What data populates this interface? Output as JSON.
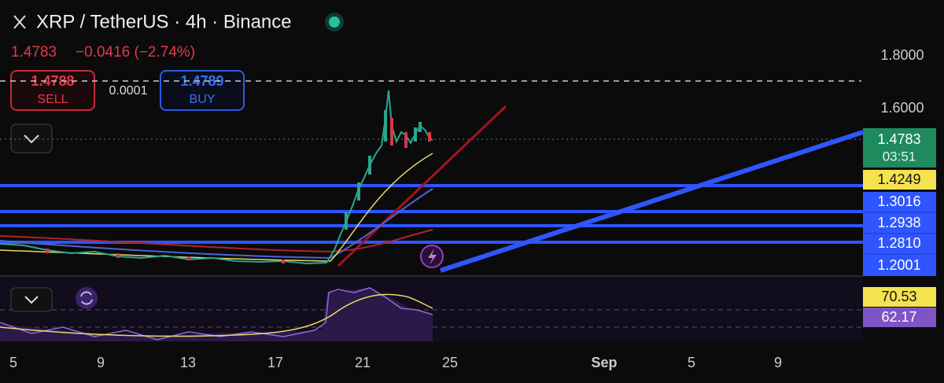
{
  "header": {
    "title": "XRP / TetherUS · 4h · Binance",
    "price": "1.4783",
    "change": "−0.0416 (−2.74%)"
  },
  "order": {
    "sell_price": "1.4788",
    "sell_label": "SELL",
    "spread": "0.0001",
    "buy_price": "1.4789",
    "buy_label": "BUY"
  },
  "price_axis": [
    "1.8000",
    "1.6000"
  ],
  "price_tags": {
    "last": "1.4783",
    "countdown": "03:51",
    "ma": "1.4249",
    "levels": [
      "1.3016",
      "1.2938",
      "1.2810",
      "1.2001"
    ]
  },
  "indicator_tags": [
    "70.53",
    "62.17"
  ],
  "date_axis": [
    "5",
    "9",
    "13",
    "17",
    "21",
    "25",
    "Sep",
    "5",
    "9"
  ]
}
